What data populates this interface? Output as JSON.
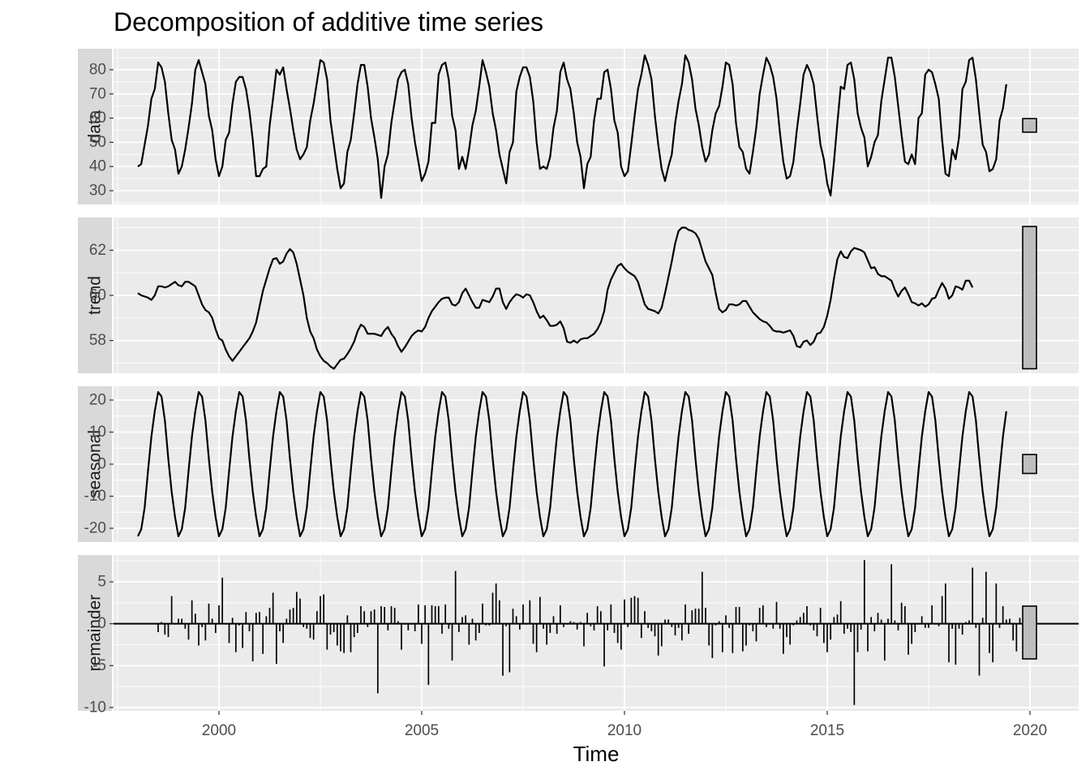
{
  "chart_data": {
    "type": "line",
    "title": "Decomposition of additive time series",
    "xlabel": "Time",
    "xlim": [
      1997.4,
      2021.2
    ],
    "x_ticks": [
      2000,
      2005,
      2010,
      2015,
      2020
    ],
    "x_tick_labels": [
      "2000",
      "2005",
      "2010",
      "2015",
      "2020"
    ],
    "grid": true,
    "series_start": 1998.0,
    "series_step": 0.0833333,
    "panels": [
      {
        "name": "data",
        "ylim": [
          24.3,
          88.7
        ],
        "y_ticks": [
          30,
          40,
          50,
          60,
          70,
          80
        ],
        "y_tick_labels": [
          "30",
          "40",
          "50",
          "60",
          "70",
          "80"
        ],
        "range_bar": [
          54.2,
          59.8
        ],
        "geom": "line",
        "values": [
          40,
          41,
          49,
          57,
          68,
          72,
          83,
          81,
          75,
          62,
          51,
          47,
          37,
          40,
          47,
          56,
          66,
          80,
          84,
          79,
          74,
          61,
          55,
          43,
          36,
          40,
          51,
          54,
          66,
          75,
          77,
          77,
          72,
          63,
          51,
          36,
          36,
          39,
          40,
          57,
          68,
          80,
          78,
          81,
          72,
          64,
          55,
          47,
          43,
          45,
          48,
          59,
          66,
          75,
          84,
          83,
          76,
          59,
          49,
          39,
          31,
          33,
          46,
          51,
          62,
          74,
          82,
          82,
          73,
          60,
          52,
          43,
          27,
          40,
          45,
          58,
          67,
          76,
          79,
          80,
          74,
          60,
          50,
          42,
          34,
          37,
          42,
          58,
          58,
          78,
          82,
          83,
          76,
          61,
          55,
          39,
          44,
          39,
          47,
          57,
          63,
          73,
          84,
          79,
          73,
          62,
          55,
          45,
          39,
          33,
          46,
          50,
          71,
          77,
          81,
          81,
          77,
          67,
          50,
          39,
          40,
          39,
          44,
          56,
          63,
          79,
          83,
          76,
          72,
          62,
          50,
          44,
          31,
          41,
          44,
          59,
          68,
          68,
          79,
          80,
          72,
          59,
          54,
          40,
          36,
          38,
          49,
          61,
          72,
          78,
          86,
          82,
          76,
          61,
          49,
          39,
          34,
          40,
          45,
          58,
          67,
          74,
          86,
          83,
          76,
          64,
          57,
          48,
          42,
          45,
          55,
          62,
          65,
          73,
          83,
          82,
          74,
          58,
          48,
          46,
          39,
          37,
          46,
          56,
          70,
          78,
          85,
          82,
          77,
          68,
          54,
          42,
          35,
          36,
          42,
          55,
          66,
          78,
          82,
          79,
          74,
          61,
          49,
          43,
          33,
          28,
          42,
          58,
          73,
          72,
          82,
          83,
          76,
          62,
          56,
          52,
          40,
          44,
          50,
          53,
          67,
          76,
          85,
          85,
          77,
          65,
          53,
          42,
          41,
          45,
          41,
          60,
          62,
          78,
          80,
          79,
          74,
          68,
          51,
          37,
          36,
          47,
          43,
          52,
          72,
          75,
          84,
          85,
          76,
          62,
          49,
          46,
          38,
          39,
          43,
          59,
          64,
          74
        ],
        "color": "#000000"
      },
      {
        "name": "trend",
        "ylim": [
          56.55,
          63.45
        ],
        "y_ticks": [
          58,
          60,
          62
        ],
        "y_tick_labels": [
          "58",
          "60",
          "62"
        ],
        "range_bar": [
          56.75,
          63.05
        ],
        "geom": "line",
        "values": [
          60.1,
          60.0,
          59.95,
          59.9,
          59.8,
          60.0,
          60.4,
          60.4,
          60.35,
          60.4,
          60.5,
          60.6,
          60.45,
          60.4,
          60.6,
          60.6,
          60.5,
          60.4,
          60.0,
          59.6,
          59.35,
          59.25,
          59.0,
          58.5,
          58.1,
          58.0,
          57.6,
          57.3,
          57.1,
          57.3,
          57.5,
          57.7,
          57.9,
          58.1,
          58.4,
          58.8,
          59.5,
          60.2,
          60.7,
          61.2,
          61.6,
          61.65,
          61.4,
          61.5,
          61.85,
          62.05,
          61.9,
          61.4,
          60.7,
          60.0,
          59.0,
          58.4,
          58.1,
          57.6,
          57.3,
          57.1,
          57.0,
          56.85,
          56.75,
          56.95,
          57.15,
          57.2,
          57.4,
          57.65,
          57.95,
          58.4,
          58.7,
          58.6,
          58.3,
          58.3,
          58.3,
          58.25,
          58.2,
          58.45,
          58.6,
          58.3,
          58.1,
          57.75,
          57.5,
          57.7,
          57.95,
          58.2,
          58.35,
          58.45,
          58.4,
          58.6,
          59.0,
          59.3,
          59.5,
          59.7,
          59.85,
          59.9,
          59.9,
          59.6,
          59.55,
          59.7,
          60.1,
          60.3,
          60.0,
          59.7,
          59.45,
          59.45,
          59.8,
          59.75,
          59.7,
          59.95,
          60.3,
          60.3,
          59.7,
          59.4,
          59.7,
          59.9,
          60.05,
          60.0,
          59.9,
          60.05,
          60.0,
          59.7,
          59.3,
          59.0,
          59.1,
          58.9,
          58.65,
          58.65,
          58.7,
          58.85,
          58.55,
          57.95,
          57.9,
          58.0,
          57.9,
          58.05,
          58.1,
          58.1,
          58.2,
          58.3,
          58.5,
          58.8,
          59.3,
          60.25,
          60.7,
          61.0,
          61.3,
          61.4,
          61.2,
          61.05,
          60.95,
          60.85,
          60.6,
          60.1,
          59.6,
          59.4,
          59.35,
          59.3,
          59.2,
          59.45,
          60.1,
          60.8,
          61.5,
          62.3,
          62.85,
          63.0,
          63.0,
          62.9,
          62.85,
          62.75,
          62.5,
          62.0,
          61.5,
          61.2,
          60.9,
          60.1,
          59.4,
          59.25,
          59.35,
          59.6,
          59.6,
          59.55,
          59.6,
          59.75,
          59.75,
          59.5,
          59.25,
          59.1,
          58.95,
          58.85,
          58.8,
          58.65,
          58.45,
          58.4,
          58.4,
          58.35,
          58.4,
          58.45,
          58.2,
          57.75,
          57.7,
          57.95,
          58.0,
          57.8,
          57.95,
          58.3,
          58.35,
          58.6,
          59.1,
          59.8,
          60.75,
          61.6,
          61.95,
          61.7,
          61.65,
          61.95,
          62.1,
          62.05,
          62.0,
          61.9,
          61.55,
          61.2,
          61.25,
          60.95,
          60.85,
          60.85,
          60.75,
          60.65,
          60.25,
          59.95,
          60.2,
          60.35,
          60.05,
          59.7,
          59.65,
          59.55,
          59.65,
          59.5,
          59.6,
          59.85,
          59.9,
          60.25,
          60.55,
          60.3,
          59.85,
          60.0,
          60.4,
          60.35,
          60.25,
          60.65,
          60.65,
          60.35
        ],
        "color": "#000000"
      },
      {
        "name": "seasonal",
        "ylim": [
          -24.3,
          24.3
        ],
        "y_ticks": [
          -20,
          -10,
          0,
          10,
          20
        ],
        "y_tick_labels": [
          "-20",
          "-10",
          "0",
          "10",
          "20"
        ],
        "range_bar": [
          -2.9,
          3.0
        ],
        "geom": "line",
        "values": [
          -22.5,
          -20.3,
          -13.6,
          -2.1,
          8.6,
          16.5,
          22.5,
          21.1,
          13.6,
          1.7,
          -8.6,
          -16.5,
          -22.5,
          -20.3,
          -13.6,
          -2.1,
          8.6,
          16.5,
          22.5,
          21.1,
          13.6,
          1.7,
          -8.6,
          -16.5,
          -22.5,
          -20.3,
          -13.6,
          -2.1,
          8.6,
          16.5,
          22.5,
          21.1,
          13.6,
          1.7,
          -8.6,
          -16.5,
          -22.5,
          -20.3,
          -13.6,
          -2.1,
          8.6,
          16.5,
          22.5,
          21.1,
          13.6,
          1.7,
          -8.6,
          -16.5,
          -22.5,
          -20.3,
          -13.6,
          -2.1,
          8.6,
          16.5,
          22.5,
          21.1,
          13.6,
          1.7,
          -8.6,
          -16.5,
          -22.5,
          -20.3,
          -13.6,
          -2.1,
          8.6,
          16.5,
          22.5,
          21.1,
          13.6,
          1.7,
          -8.6,
          -16.5,
          -22.5,
          -20.3,
          -13.6,
          -2.1,
          8.6,
          16.5,
          22.5,
          21.1,
          13.6,
          1.7,
          -8.6,
          -16.5,
          -22.5,
          -20.3,
          -13.6,
          -2.1,
          8.6,
          16.5,
          22.5,
          21.1,
          13.6,
          1.7,
          -8.6,
          -16.5,
          -22.5,
          -20.3,
          -13.6,
          -2.1,
          8.6,
          16.5,
          22.5,
          21.1,
          13.6,
          1.7,
          -8.6,
          -16.5,
          -22.5,
          -20.3,
          -13.6,
          -2.1,
          8.6,
          16.5,
          22.5,
          21.1,
          13.6,
          1.7,
          -8.6,
          -16.5,
          -22.5,
          -20.3,
          -13.6,
          -2.1,
          8.6,
          16.5,
          22.5,
          21.1,
          13.6,
          1.7,
          -8.6,
          -16.5,
          -22.5,
          -20.3,
          -13.6,
          -2.1,
          8.6,
          16.5,
          22.5,
          21.1,
          13.6,
          1.7,
          -8.6,
          -16.5,
          -22.5,
          -20.3,
          -13.6,
          -2.1,
          8.6,
          16.5,
          22.5,
          21.1,
          13.6,
          1.7,
          -8.6,
          -16.5,
          -22.5,
          -20.3,
          -13.6,
          -2.1,
          8.6,
          16.5,
          22.5,
          21.1,
          13.6,
          1.7,
          -8.6,
          -16.5,
          -22.5,
          -20.3,
          -13.6,
          -2.1,
          8.6,
          16.5,
          22.5,
          21.1,
          13.6,
          1.7,
          -8.6,
          -16.5,
          -22.5,
          -20.3,
          -13.6,
          -2.1,
          8.6,
          16.5,
          22.5,
          21.1,
          13.6,
          1.7,
          -8.6,
          -16.5,
          -22.5,
          -20.3,
          -13.6,
          -2.1,
          8.6,
          16.5,
          22.5,
          21.1,
          13.6,
          1.7,
          -8.6,
          -16.5,
          -22.5,
          -20.3,
          -13.6,
          -2.1,
          8.6,
          16.5,
          22.5,
          21.1,
          13.6,
          1.7,
          -8.6,
          -16.5,
          -22.5,
          -20.3,
          -13.6,
          -2.1,
          8.6,
          16.5,
          22.5,
          21.1,
          13.6,
          1.7,
          -8.6,
          -16.5,
          -22.5,
          -20.3,
          -13.6,
          -2.1,
          8.6,
          16.5,
          22.5,
          21.1,
          13.6,
          1.7,
          -8.6,
          -16.5,
          -22.5,
          -20.3,
          -13.6,
          -2.1,
          8.6,
          16.5,
          22.5,
          21.1,
          13.6,
          1.7,
          -8.6,
          -16.5,
          -22.5,
          -20.3,
          -13.6,
          -2.1,
          8.6,
          16.5
        ],
        "color": "#000000"
      },
      {
        "name": "remainder",
        "ylim": [
          -10.4,
          8.2
        ],
        "y_ticks": [
          -10,
          -5,
          0,
          5
        ],
        "y_tick_labels": [
          "-10",
          "-5",
          "0",
          "5"
        ],
        "range_bar": [
          -4.2,
          2.1
        ],
        "geom": "bar",
        "baseline": 0,
        "values": [
          null,
          null,
          null,
          null,
          null,
          null,
          -1.0,
          0.2,
          -1.3,
          -1.6,
          3.3,
          -0.1,
          0.6,
          0.6,
          -0.6,
          -1.9,
          2.8,
          1.2,
          -2.6,
          -0.4,
          -2.0,
          2.4,
          0.6,
          -1.1,
          2.2,
          5.5,
          -0.1,
          -2.3,
          0.7,
          -3.4,
          -0.2,
          -2.9,
          1.4,
          -0.9,
          -4.5,
          1.3,
          1.4,
          -3.6,
          0.9,
          1.9,
          3.7,
          -4.8,
          -0.9,
          -2.3,
          0.6,
          1.7,
          1.9,
          3.8,
          3.0,
          -0.4,
          -0.6,
          -1.7,
          -1.9,
          1.5,
          3.3,
          3.5,
          -3.1,
          -1.3,
          -1.0,
          -2.6,
          -3.3,
          -3.5,
          1.0,
          -3.4,
          -1.6,
          -1.1,
          2.1,
          1.5,
          -0.4,
          1.5,
          1.7,
          -8.3,
          2.1,
          2.0,
          -0.8,
          2.1,
          1.9,
          0.3,
          -3.1,
          -0.1,
          -0.8,
          -0.1,
          -0.9,
          2.3,
          -2.4,
          2.2,
          -7.3,
          2.2,
          2.1,
          2.1,
          -1.2,
          2.3,
          -0.6,
          -4.4,
          6.3,
          -1.0,
          0.8,
          1.0,
          -2.5,
          0.6,
          -2.0,
          -1.1,
          2.4,
          -0.2,
          -0.2,
          3.7,
          4.8,
          2.8,
          -6.2,
          -0.3,
          -5.8,
          1.8,
          0.9,
          -0.7,
          2.3,
          -0.1,
          2.8,
          -2.4,
          -3.4,
          3.2,
          -0.6,
          -2.5,
          -1.1,
          0.9,
          -1.2,
          2.2,
          -0.4,
          -0.1,
          0.3,
          0.2,
          -0.7,
          0.2,
          -2.7,
          1.3,
          -0.3,
          -0.8,
          2.1,
          1.5,
          -5.1,
          -0.8,
          2.3,
          -1.1,
          -2.3,
          -3.1,
          2.9,
          -0.4,
          3.1,
          3.3,
          3.1,
          -1.7,
          1.5,
          -0.5,
          -0.9,
          -1.5,
          -3.8,
          -2.7,
          0.5,
          0.5,
          -0.4,
          -1.4,
          -0.5,
          -2.0,
          2.3,
          -1.2,
          1.6,
          1.8,
          1.8,
          6.2,
          1.9,
          -2.6,
          -4.1,
          -0.2,
          0.3,
          -3.4,
          1.0,
          -0.5,
          -3.5,
          2.0,
          2.0,
          -3.3,
          -2.6,
          -0.2,
          -0.9,
          -2.1,
          1.9,
          2.2,
          -0.4,
          -0.1,
          -0.6,
          2.6,
          -0.6,
          -3.6,
          -1.6,
          -2.5,
          -0.2,
          0.4,
          0.8,
          1.3,
          2.1,
          -0.2,
          -0.8,
          -1.5,
          1.9,
          -2.3,
          -3.4,
          -1.9,
          0.8,
          1.1,
          2.7,
          -1.2,
          -0.6,
          -1.0,
          -9.7,
          -3.4,
          -0.7,
          7.6,
          -3.3,
          0.8,
          -0.9,
          1.3,
          0.5,
          -4.4,
          0.6,
          7.1,
          0.4,
          -0.8,
          2.5,
          2.1,
          -3.7,
          -2.4,
          -1.0,
          -0.1,
          0.9,
          -0.5,
          -0.5,
          2.2,
          -0.1,
          -0.3,
          3.3,
          4.8,
          -4.6,
          -0.6,
          -4.9,
          -0.6,
          -1.3,
          0.2,
          0.4,
          6.7,
          -0.5,
          -6.2,
          0.7,
          6.2,
          -3.5,
          -4.6,
          4.8,
          -0.5,
          2.1,
          0.5,
          0.6,
          -2.0,
          -3.3,
          0.7,
          -4.1,
          1.4,
          null,
          null,
          null,
          null,
          null,
          null
        ],
        "color": "#000000"
      }
    ]
  }
}
